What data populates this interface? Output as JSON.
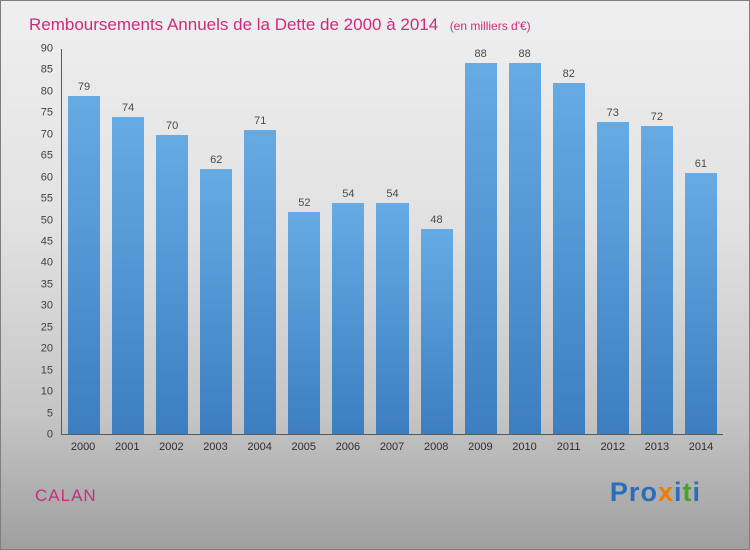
{
  "header": {
    "title": "Remboursements Annuels de la Dette de 2000 à 2014",
    "subtitle": "(en milliers d'€)"
  },
  "chart_data": {
    "type": "bar",
    "title": "Remboursements Annuels de la Dette de 2000 à 2014 (en milliers d'€)",
    "categories": [
      "2000",
      "2001",
      "2002",
      "2003",
      "2004",
      "2005",
      "2006",
      "2007",
      "2008",
      "2009",
      "2010",
      "2011",
      "2012",
      "2013",
      "2014"
    ],
    "values": [
      79,
      74,
      70,
      62,
      71,
      52,
      54,
      54,
      48,
      88,
      88,
      82,
      73,
      72,
      61
    ],
    "xlabel": "",
    "ylabel": "",
    "ylim": [
      0,
      90
    ],
    "ytick_step": 5,
    "grid": false,
    "legend": "none",
    "value_labels": true
  },
  "colors": {
    "title": "#cc2c7c",
    "brand": "#cc2c7c",
    "bar_top": "#66abe4",
    "bar_bottom": "#3c7ec0",
    "axis": "#5a5a5a",
    "value_label": "#4a4a4a"
  },
  "footer": {
    "brand": "CALAN",
    "logo": [
      {
        "ch": "P",
        "color": "#2a6ebb"
      },
      {
        "ch": "r",
        "color": "#2a6ebb"
      },
      {
        "ch": "o",
        "color": "#2a6ebb"
      },
      {
        "ch": "x",
        "color": "#f07c00"
      },
      {
        "ch": "i",
        "color": "#2a6ebb"
      },
      {
        "ch": "t",
        "color": "#43a52c"
      },
      {
        "ch": "i",
        "color": "#2a6ebb"
      }
    ]
  }
}
